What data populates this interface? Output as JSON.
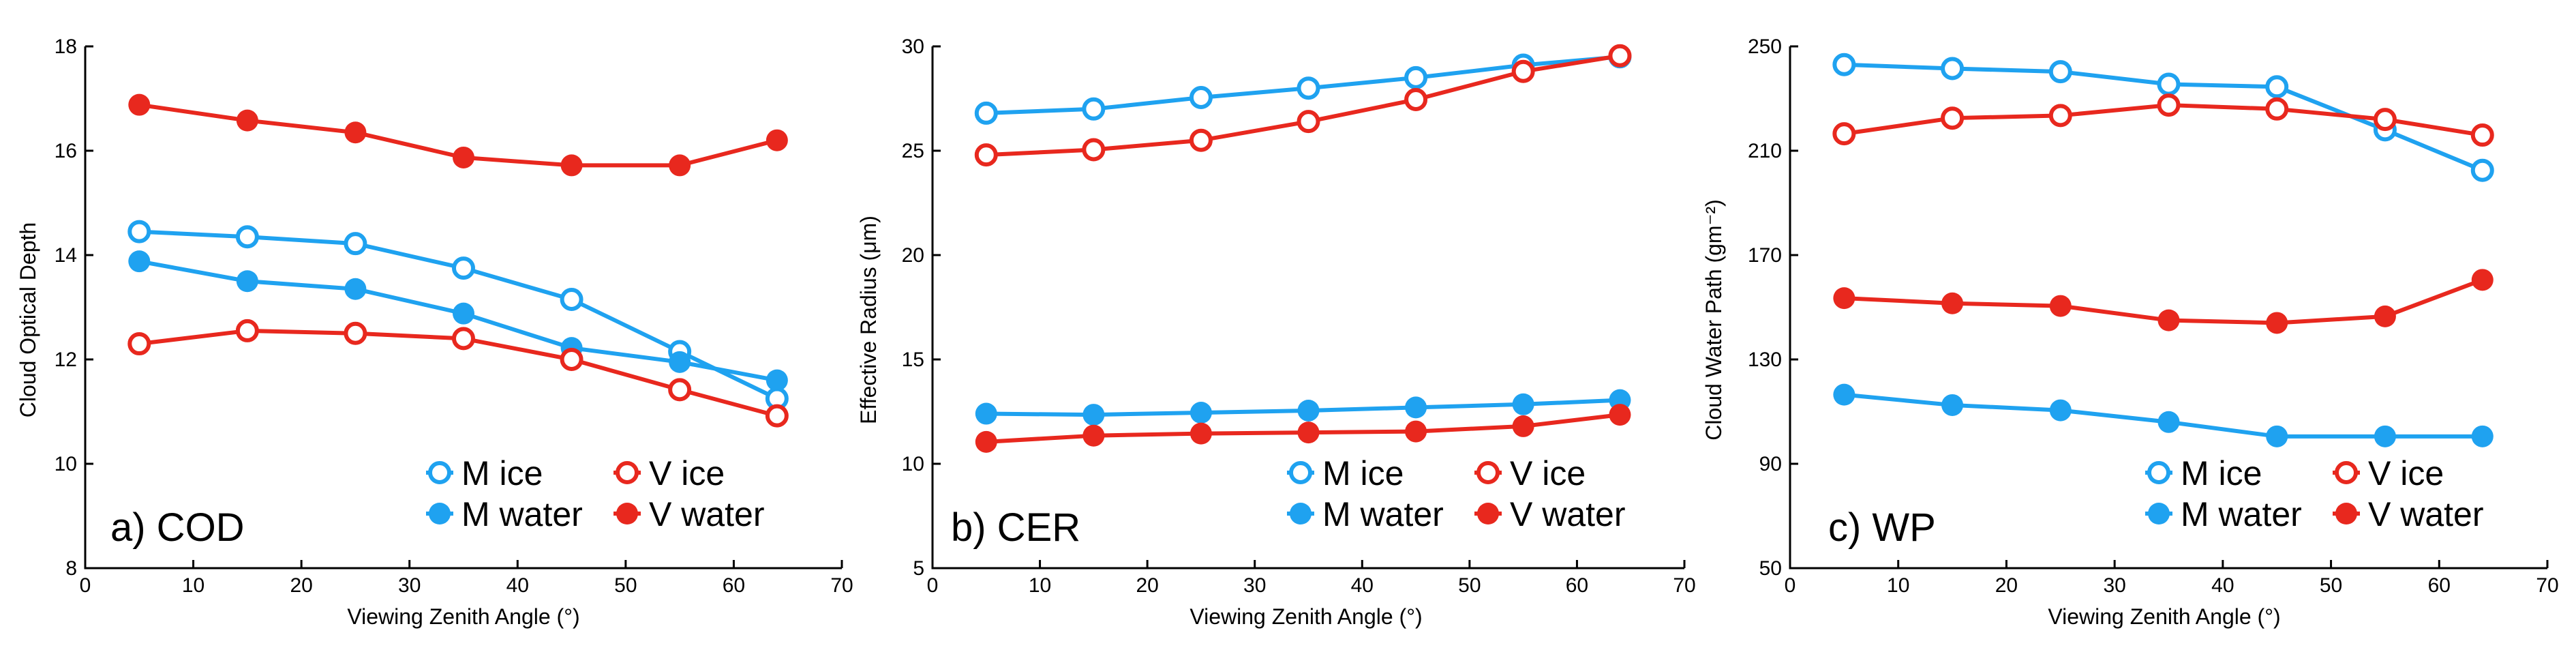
{
  "colors": {
    "M": "#1fa2f0",
    "V": "#e8281e"
  },
  "chart_data": [
    {
      "type": "line",
      "title": "a) COD",
      "xlabel": "Viewing Zenith Angle (°)",
      "ylabel": "Cloud Optical Depth",
      "xlim": [
        0,
        70
      ],
      "ylim": [
        8,
        18
      ],
      "xticks": [
        0,
        10,
        20,
        30,
        40,
        50,
        60,
        70
      ],
      "yticks": [
        8,
        10,
        12,
        14,
        16,
        18
      ],
      "x": [
        5,
        15,
        25,
        35,
        45,
        55,
        64
      ],
      "legend": [
        "M ice",
        "V ice",
        "M water",
        "V water"
      ],
      "series": [
        {
          "name": "M ice",
          "values": [
            14.45,
            14.35,
            14.22,
            13.75,
            13.15,
            12.15,
            11.25
          ]
        },
        {
          "name": "M water",
          "values": [
            13.88,
            13.5,
            13.35,
            12.88,
            12.22,
            11.95,
            11.6
          ]
        },
        {
          "name": "V ice",
          "values": [
            12.3,
            12.55,
            12.5,
            12.4,
            12.0,
            11.42,
            10.92
          ]
        },
        {
          "name": "V water",
          "values": [
            16.88,
            16.58,
            16.35,
            15.87,
            15.72,
            15.72,
            16.2
          ]
        }
      ]
    },
    {
      "type": "line",
      "title": "b) CER",
      "xlabel": "Viewing Zenith Angle (°)",
      "ylabel": "Effective Radius (μm)",
      "xlim": [
        0,
        70
      ],
      "ylim": [
        5,
        30
      ],
      "xticks": [
        0,
        10,
        20,
        30,
        40,
        50,
        60,
        70
      ],
      "yticks": [
        5,
        10,
        15,
        20,
        25,
        30
      ],
      "x": [
        5,
        15,
        25,
        35,
        45,
        55,
        64
      ],
      "legend": [
        "M ice",
        "V ice",
        "M water",
        "V water"
      ],
      "series": [
        {
          "name": "M ice",
          "values": [
            26.8,
            27.0,
            27.55,
            28.0,
            28.5,
            29.1,
            29.5
          ]
        },
        {
          "name": "M water",
          "values": [
            12.4,
            12.35,
            12.45,
            12.55,
            12.7,
            12.85,
            13.05
          ]
        },
        {
          "name": "V ice",
          "values": [
            24.8,
            25.05,
            25.5,
            26.4,
            27.45,
            28.8,
            29.55
          ]
        },
        {
          "name": "V water",
          "values": [
            11.05,
            11.35,
            11.45,
            11.5,
            11.55,
            11.8,
            12.35
          ]
        }
      ]
    },
    {
      "type": "line",
      "title": "c) WP",
      "xlabel": "Viewing Zenith Angle (°)",
      "ylabel": "Cloud Water Path (gm⁻²)",
      "xlim": [
        0,
        70
      ],
      "ylim": [
        50,
        250
      ],
      "xticks": [
        0,
        10,
        20,
        30,
        40,
        50,
        60,
        70
      ],
      "yticks": [
        50,
        90,
        130,
        170,
        210,
        250
      ],
      "x": [
        5,
        15,
        25,
        35,
        45,
        55,
        64
      ],
      "legend": [
        "M ice",
        "V ice",
        "M water",
        "V water"
      ],
      "series": [
        {
          "name": "M ice",
          "values": [
            243,
            241.5,
            240.3,
            235.5,
            234.5,
            218,
            202.5
          ]
        },
        {
          "name": "M water",
          "values": [
            116.5,
            112.5,
            110.5,
            106,
            100.5,
            100.5,
            100.5
          ]
        },
        {
          "name": "V ice",
          "values": [
            216.5,
            222.5,
            223.5,
            227.5,
            226,
            222,
            216
          ]
        },
        {
          "name": "V water",
          "values": [
            153.5,
            151.5,
            150.5,
            145,
            144,
            146.5,
            160.5
          ]
        }
      ]
    }
  ]
}
